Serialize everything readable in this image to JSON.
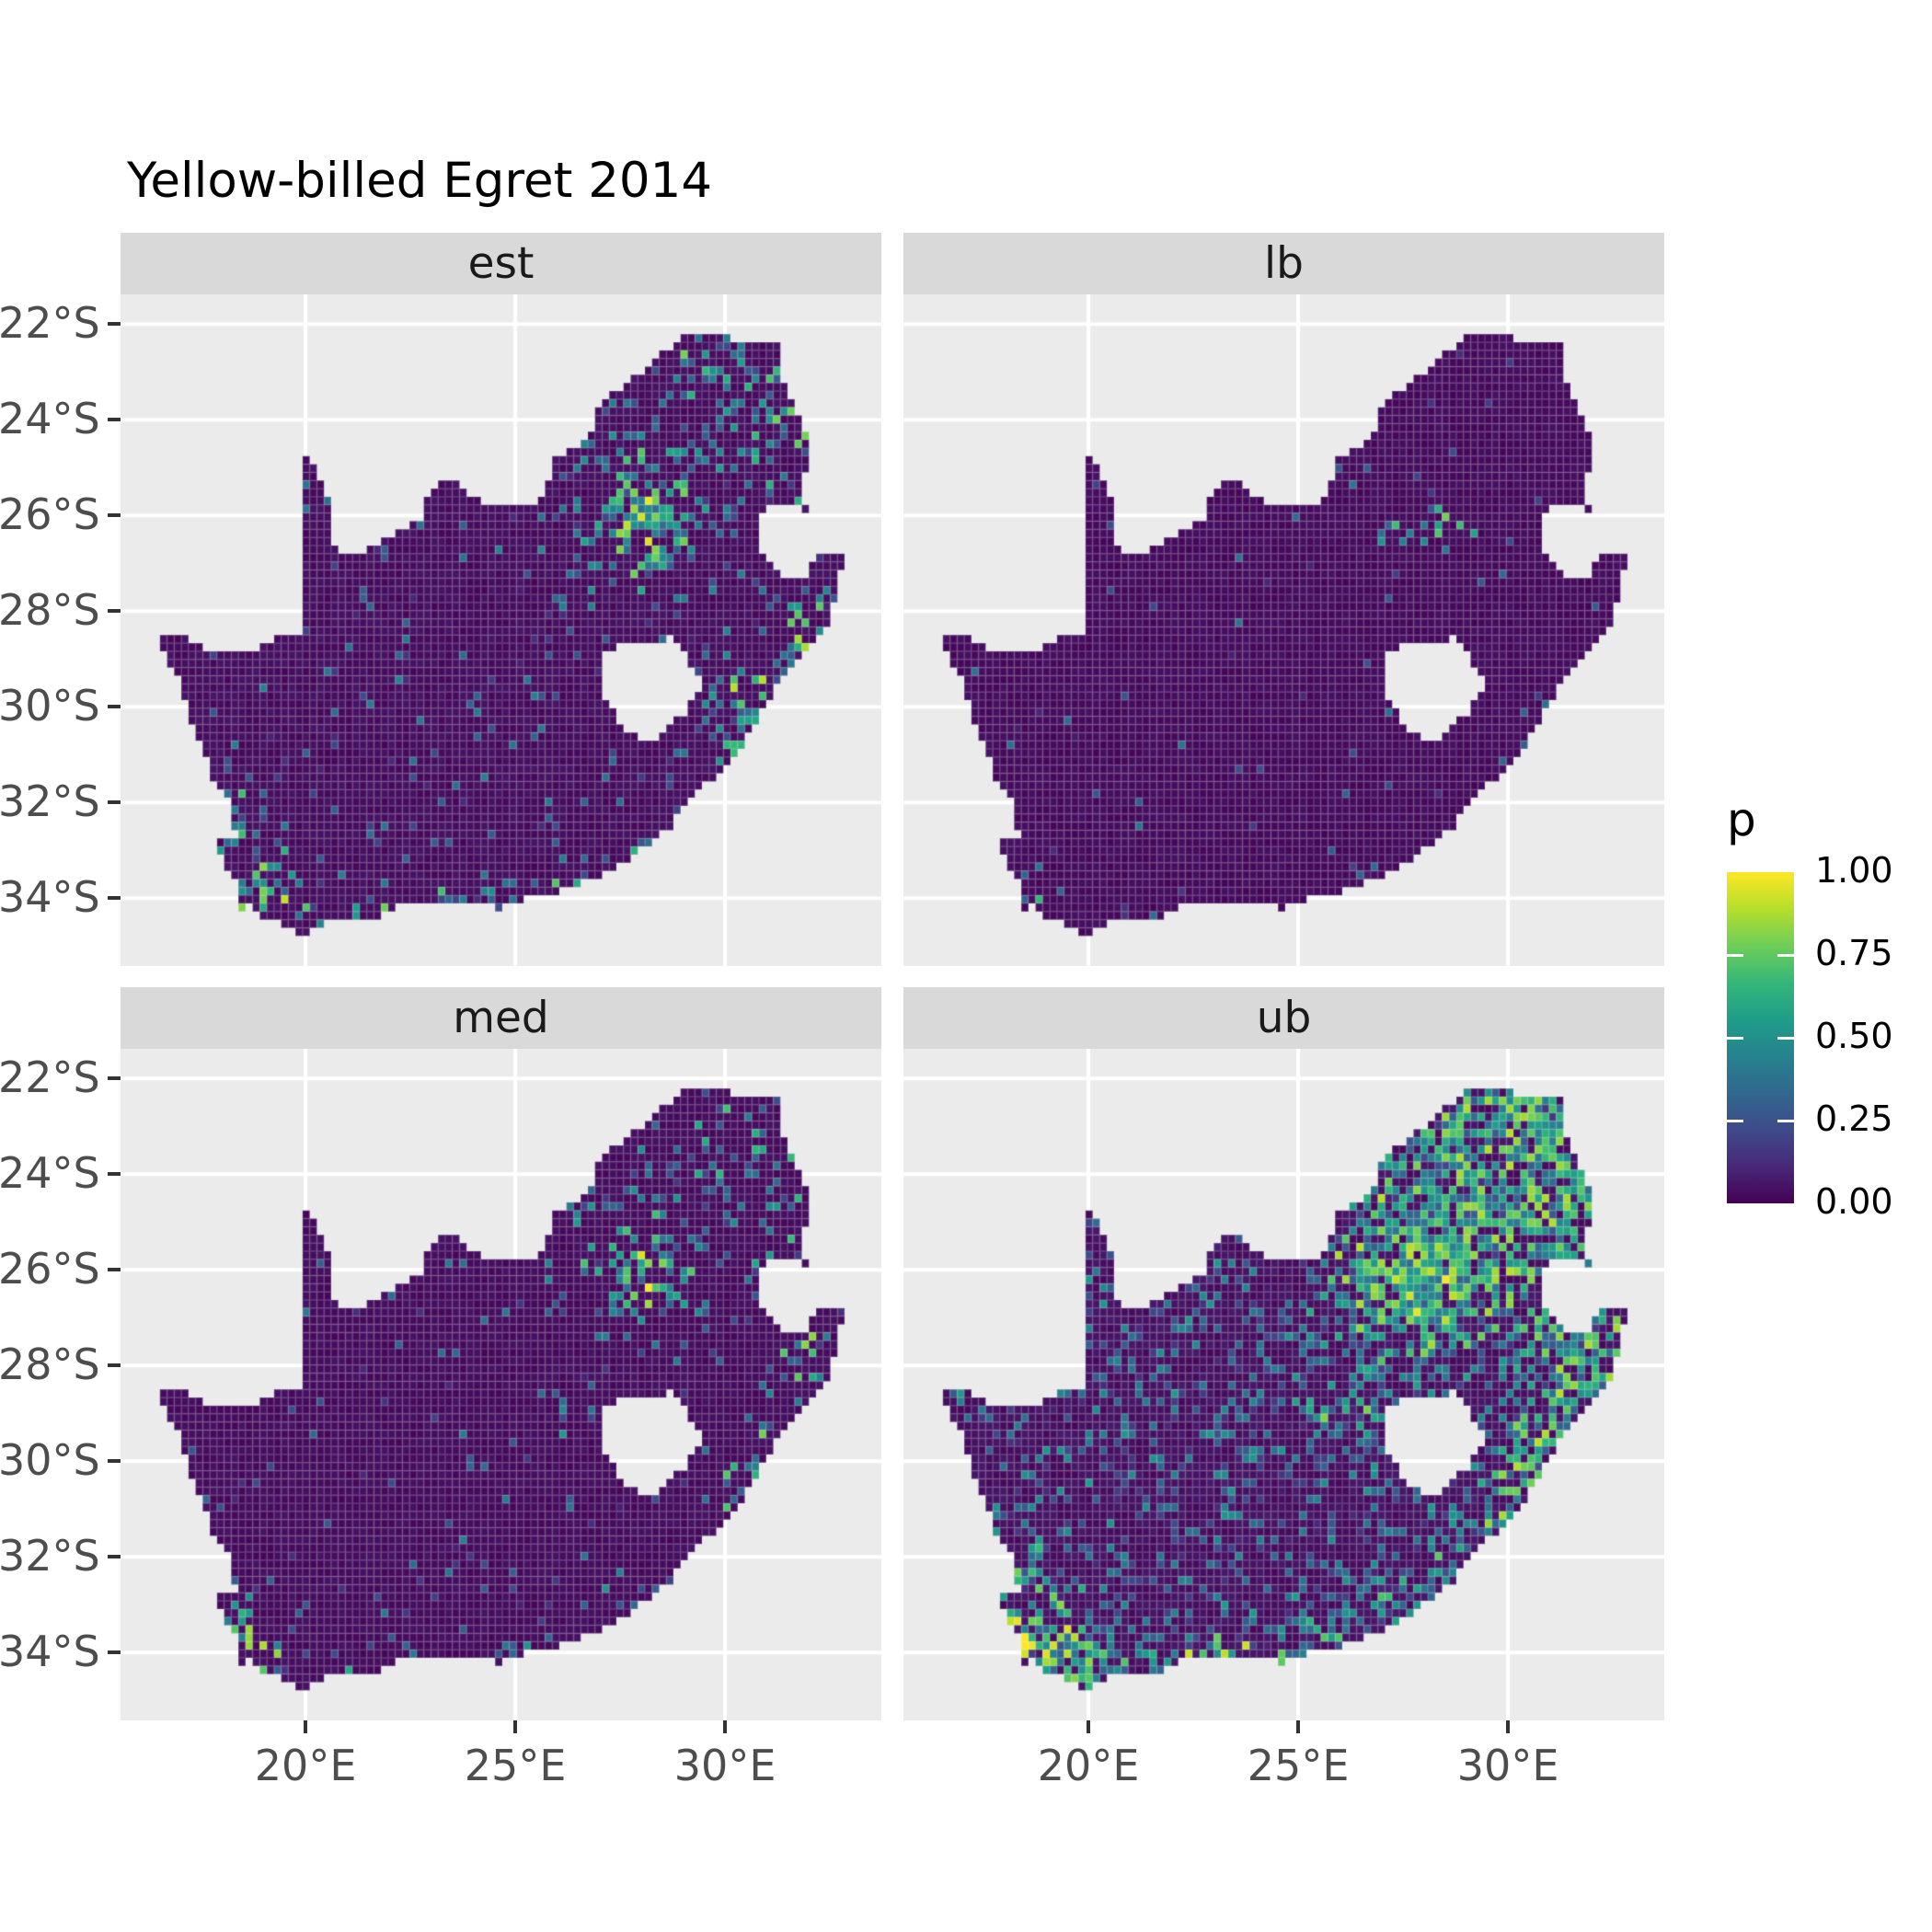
{
  "title": "Yellow-billed Egret 2014",
  "facets": [
    {
      "label": "est"
    },
    {
      "label": "lb"
    },
    {
      "label": "med"
    },
    {
      "label": "ub"
    }
  ],
  "axes": {
    "x": {
      "labels": [
        "20°E",
        "25°E",
        "30°E"
      ],
      "degrees_east": [
        20,
        25,
        30
      ]
    },
    "y": {
      "labels": [
        "22°S",
        "24°S",
        "26°S",
        "28°S",
        "30°S",
        "32°S",
        "34°S"
      ],
      "degrees_south": [
        22,
        24,
        26,
        28,
        30,
        32,
        34
      ]
    }
  },
  "legend": {
    "title": "p",
    "labels": [
      "1.00",
      "0.75",
      "0.50",
      "0.25",
      "0.00"
    ],
    "values": [
      1.0,
      0.75,
      0.5,
      0.25,
      0.0
    ]
  },
  "colors": {
    "panel_bg": "#ebebeb",
    "strip_bg": "#d9d9d9",
    "gridline": "#ffffff",
    "axis_text": "#4d4d4d",
    "text": "#1a1a1a",
    "viridis": [
      "#440154",
      "#482878",
      "#3e4a89",
      "#31688e",
      "#26828e",
      "#1f9e89",
      "#35b779",
      "#6ece58",
      "#b5de2b",
      "#fde725"
    ]
  },
  "chart_data": {
    "type": "heatmap",
    "title": "Yellow-billed Egret 2014",
    "facet_variable_values": [
      "est",
      "lb",
      "med",
      "ub"
    ],
    "value_name": "p",
    "value_range": [
      0,
      1
    ],
    "palette": "viridis",
    "region": "South Africa",
    "grid_on": true,
    "legend_position": "right",
    "x": {
      "tick_degrees_east": [
        20,
        25,
        30
      ],
      "range_degrees_east": [
        15.59,
        33.73
      ]
    },
    "y": {
      "tick_degrees_south": [
        22,
        24,
        26,
        28,
        30,
        32,
        34
      ],
      "range_degrees_south": [
        21.38,
        35.42
      ]
    },
    "grid_step_deg": 0.17,
    "outline_lonlat": [
      [
        16.45,
        -28.6
      ],
      [
        16.9,
        -29.3
      ],
      [
        17.1,
        -29.75
      ],
      [
        17.3,
        -30.4
      ],
      [
        17.6,
        -31.0
      ],
      [
        17.9,
        -31.7
      ],
      [
        18.25,
        -32.1
      ],
      [
        18.33,
        -32.7
      ],
      [
        17.95,
        -32.82
      ],
      [
        18.0,
        -33.2
      ],
      [
        18.3,
        -33.5
      ],
      [
        18.45,
        -33.92
      ],
      [
        18.35,
        -34.2
      ],
      [
        18.48,
        -34.36
      ],
      [
        18.72,
        -34.08
      ],
      [
        18.86,
        -34.4
      ],
      [
        19.3,
        -34.46
      ],
      [
        19.7,
        -34.65
      ],
      [
        20.0,
        -34.83
      ],
      [
        20.5,
        -34.48
      ],
      [
        20.9,
        -34.4
      ],
      [
        21.6,
        -34.42
      ],
      [
        22.2,
        -34.2
      ],
      [
        22.6,
        -34.05
      ],
      [
        23.3,
        -34.1
      ],
      [
        23.9,
        -34.05
      ],
      [
        24.6,
        -34.2
      ],
      [
        25.2,
        -34.0
      ],
      [
        25.65,
        -33.95
      ],
      [
        26.3,
        -33.77
      ],
      [
        26.9,
        -33.6
      ],
      [
        27.5,
        -33.28
      ],
      [
        27.95,
        -33.0
      ],
      [
        28.6,
        -32.6
      ],
      [
        29.2,
        -31.95
      ],
      [
        29.8,
        -31.4
      ],
      [
        30.35,
        -30.95
      ],
      [
        30.8,
        -30.2
      ],
      [
        31.05,
        -29.87
      ],
      [
        31.35,
        -29.4
      ],
      [
        31.75,
        -29.0
      ],
      [
        32.05,
        -28.75
      ],
      [
        32.3,
        -28.4
      ],
      [
        32.55,
        -28.1
      ],
      [
        32.68,
        -27.5
      ],
      [
        32.82,
        -27.0
      ],
      [
        32.9,
        -26.85
      ],
      [
        32.12,
        -26.85
      ],
      [
        31.97,
        -27.32
      ],
      [
        31.5,
        -27.3
      ],
      [
        30.95,
        -26.95
      ],
      [
        30.8,
        -26.4
      ],
      [
        30.82,
        -26.0
      ],
      [
        31.1,
        -25.8
      ],
      [
        31.45,
        -25.72
      ],
      [
        31.95,
        -25.95
      ],
      [
        31.85,
        -25.4
      ],
      [
        31.98,
        -24.9
      ],
      [
        31.9,
        -24.2
      ],
      [
        31.55,
        -23.6
      ],
      [
        31.3,
        -22.9
      ],
      [
        31.3,
        -22.4
      ],
      [
        30.8,
        -22.3
      ],
      [
        30.3,
        -22.35
      ],
      [
        29.7,
        -22.15
      ],
      [
        29.35,
        -22.2
      ],
      [
        29.0,
        -22.3
      ],
      [
        28.6,
        -22.55
      ],
      [
        28.2,
        -22.8
      ],
      [
        27.9,
        -23.1
      ],
      [
        27.6,
        -23.25
      ],
      [
        27.2,
        -23.55
      ],
      [
        26.95,
        -23.75
      ],
      [
        26.85,
        -24.3
      ],
      [
        26.5,
        -24.62
      ],
      [
        25.95,
        -24.75
      ],
      [
        25.85,
        -25.1
      ],
      [
        25.65,
        -25.6
      ],
      [
        25.35,
        -25.75
      ],
      [
        24.9,
        -25.8
      ],
      [
        24.35,
        -25.77
      ],
      [
        24.0,
        -25.65
      ],
      [
        23.65,
        -25.35
      ],
      [
        23.25,
        -25.28
      ],
      [
        22.95,
        -25.45
      ],
      [
        22.85,
        -25.85
      ],
      [
        22.7,
        -26.15
      ],
      [
        22.15,
        -26.35
      ],
      [
        21.7,
        -26.65
      ],
      [
        21.1,
        -26.87
      ],
      [
        20.75,
        -26.8
      ],
      [
        20.65,
        -26.35
      ],
      [
        20.6,
        -25.8
      ],
      [
        20.4,
        -25.35
      ],
      [
        20.15,
        -24.95
      ],
      [
        19.99,
        -24.77
      ],
      [
        19.99,
        -28.42
      ],
      [
        19.3,
        -28.52
      ],
      [
        18.7,
        -28.87
      ],
      [
        18.0,
        -28.87
      ],
      [
        17.4,
        -28.72
      ],
      [
        16.9,
        -28.4
      ]
    ],
    "lesotho_hole_lonlat": [
      [
        27.0,
        -28.95
      ],
      [
        27.55,
        -28.65
      ],
      [
        28.2,
        -28.7
      ],
      [
        28.7,
        -28.55
      ],
      [
        29.15,
        -29.05
      ],
      [
        29.45,
        -29.35
      ],
      [
        29.35,
        -29.75
      ],
      [
        28.95,
        -30.2
      ],
      [
        28.35,
        -30.65
      ],
      [
        27.8,
        -30.62
      ],
      [
        27.4,
        -30.2
      ],
      [
        27.05,
        -29.65
      ]
    ],
    "facet_fields": [
      {
        "name": "est",
        "seed": 1,
        "base": [
          0.015,
          0.055
        ],
        "speckle_p": 0.05,
        "speckle_amp": 0.45,
        "hotspots": [
          [
            28.1,
            -26.15,
            0.5,
            0.45,
            0.9,
            1.0
          ],
          [
            28.0,
            -26.0,
            1.3,
            1.1,
            0.3,
            0.8
          ],
          [
            29.6,
            -23.2,
            1.7,
            1.1,
            0.18,
            0.8
          ],
          [
            27.9,
            -24.5,
            1.0,
            0.8,
            0.1,
            0.6
          ],
          [
            31.2,
            -24.4,
            0.8,
            1.3,
            0.2,
            0.8
          ],
          [
            31.0,
            -22.8,
            0.9,
            0.5,
            0.22,
            0.75
          ],
          [
            32.0,
            -28.3,
            0.6,
            0.8,
            0.32,
            0.9
          ],
          [
            30.9,
            -29.9,
            0.7,
            0.6,
            0.35,
            0.9
          ],
          [
            30.1,
            -30.7,
            0.55,
            0.55,
            0.28,
            0.8
          ],
          [
            29.4,
            -29.8,
            0.9,
            0.8,
            0.1,
            0.55
          ],
          [
            27.8,
            -33.0,
            0.8,
            0.45,
            0.16,
            0.7
          ],
          [
            25.6,
            -33.9,
            0.7,
            0.4,
            0.2,
            0.75
          ],
          [
            22.8,
            -34.3,
            2.3,
            0.4,
            0.16,
            0.8
          ],
          [
            18.7,
            -33.95,
            0.7,
            0.7,
            0.5,
            1.0
          ],
          [
            18.35,
            -32.5,
            0.45,
            0.8,
            0.14,
            0.7
          ],
          [
            26.2,
            -29.1,
            0.45,
            0.4,
            0.14,
            0.6
          ],
          [
            24.8,
            -28.6,
            2.0,
            1.6,
            0.025,
            0.45
          ]
        ]
      },
      {
        "name": "lb",
        "seed": 2,
        "base": [
          0.012,
          0.045
        ],
        "speckle_p": 0.012,
        "speckle_amp": 0.4,
        "hotspots": [
          [
            28.1,
            -26.1,
            0.7,
            0.65,
            0.18,
            0.8
          ],
          [
            31.9,
            -28.4,
            0.5,
            0.7,
            0.06,
            0.6
          ],
          [
            30.9,
            -29.9,
            0.4,
            0.4,
            0.08,
            0.5
          ],
          [
            18.55,
            -34.0,
            0.4,
            0.4,
            0.14,
            0.75
          ],
          [
            22.8,
            -34.35,
            1.8,
            0.3,
            0.05,
            0.55
          ],
          [
            25.6,
            -33.95,
            0.5,
            0.3,
            0.06,
            0.5
          ]
        ]
      },
      {
        "name": "med",
        "seed": 3,
        "base": [
          0.015,
          0.05
        ],
        "speckle_p": 0.03,
        "speckle_amp": 0.42,
        "hotspots": [
          [
            28.1,
            -26.15,
            0.5,
            0.45,
            0.6,
            1.0
          ],
          [
            28.0,
            -26.0,
            1.2,
            1.0,
            0.2,
            0.75
          ],
          [
            29.6,
            -23.2,
            1.6,
            1.0,
            0.11,
            0.7
          ],
          [
            31.2,
            -24.4,
            0.8,
            1.2,
            0.13,
            0.7
          ],
          [
            31.0,
            -22.8,
            0.9,
            0.5,
            0.13,
            0.7
          ],
          [
            32.0,
            -28.3,
            0.6,
            0.8,
            0.22,
            0.85
          ],
          [
            30.9,
            -29.9,
            0.65,
            0.55,
            0.22,
            0.85
          ],
          [
            30.1,
            -30.7,
            0.5,
            0.5,
            0.18,
            0.75
          ],
          [
            27.8,
            -33.0,
            0.7,
            0.4,
            0.1,
            0.65
          ],
          [
            25.6,
            -33.9,
            0.65,
            0.38,
            0.13,
            0.7
          ],
          [
            22.8,
            -34.3,
            2.2,
            0.38,
            0.1,
            0.7
          ],
          [
            18.7,
            -33.95,
            0.65,
            0.65,
            0.32,
            0.95
          ],
          [
            26.2,
            -29.1,
            0.4,
            0.38,
            0.09,
            0.55
          ]
        ]
      },
      {
        "name": "ub",
        "seed": 4,
        "base": [
          0.02,
          0.07
        ],
        "speckle_p": 0.16,
        "speckle_amp": 0.55,
        "hotspots": [
          [
            27.9,
            -26.15,
            0.85,
            0.75,
            1.0,
            1.0
          ],
          [
            28.0,
            -25.9,
            1.9,
            1.5,
            0.6,
            0.9
          ],
          [
            29.8,
            -23.6,
            2.1,
            1.4,
            0.5,
            0.9
          ],
          [
            30.4,
            -22.7,
            1.4,
            0.65,
            0.55,
            0.9
          ],
          [
            31.2,
            -24.6,
            1.0,
            1.5,
            0.5,
            0.9
          ],
          [
            32.0,
            -28.1,
            0.85,
            1.1,
            0.6,
            0.95
          ],
          [
            30.8,
            -29.9,
            0.85,
            0.8,
            0.55,
            0.95
          ],
          [
            30.0,
            -30.9,
            0.65,
            0.65,
            0.5,
            0.9
          ],
          [
            31.3,
            -27.4,
            0.95,
            0.85,
            0.38,
            0.85
          ],
          [
            29.1,
            -32.0,
            0.95,
            0.7,
            0.3,
            0.8
          ],
          [
            27.6,
            -32.95,
            0.85,
            0.55,
            0.35,
            0.85
          ],
          [
            25.5,
            -33.9,
            0.8,
            0.5,
            0.42,
            0.9
          ],
          [
            22.8,
            -34.35,
            2.4,
            0.5,
            0.45,
            0.95
          ],
          [
            18.8,
            -33.95,
            0.95,
            0.85,
            0.65,
            1.0
          ],
          [
            19.9,
            -34.4,
            0.7,
            0.45,
            0.5,
            0.95
          ],
          [
            18.35,
            -32.6,
            0.55,
            1.1,
            0.3,
            0.8
          ],
          [
            26.5,
            -28.6,
            1.7,
            1.4,
            0.14,
            0.6
          ],
          [
            23.5,
            -31.5,
            2.6,
            2.0,
            0.07,
            0.5
          ],
          [
            26.2,
            -29.1,
            0.5,
            0.45,
            0.4,
            0.9
          ],
          [
            21.0,
            -27.8,
            2.4,
            1.8,
            0.06,
            0.5
          ]
        ]
      }
    ]
  }
}
